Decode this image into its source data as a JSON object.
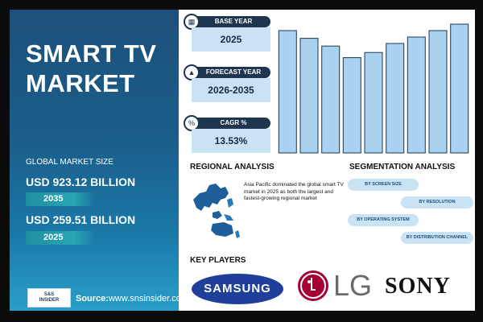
{
  "title": "SMART TV MARKET",
  "market": {
    "label": "GLOBAL MARKET SIZE",
    "value_future": "USD 923.12 BILLION",
    "year_future": "2035",
    "value_current": "USD 259.51 BILLION",
    "year_current": "2025"
  },
  "stats": {
    "base_year_label": "BASE YEAR",
    "base_year": "2025",
    "forecast_label": "FORECAST YEAR",
    "forecast": "2026-2035",
    "cagr_label": "CAGR %",
    "cagr": "13.53%"
  },
  "source": {
    "label": "Source:",
    "url": "www.snsinsider.com"
  },
  "logo_text": "S&S INSIDER Strategy & Stats",
  "regional": {
    "heading": "REGIONAL ANALYSIS",
    "text": "Asia Pacific dominated the global smart TV market in 2025 as both the largest and fastest-growing regional market"
  },
  "segmentation": {
    "heading": "SEGMENTATION ANALYSIS",
    "items": [
      "BY SCREEN SIZE",
      "BY RESOLUTION",
      "BY OPERATING SYSTEM",
      "BY DISTRIBUTION CHANNEL"
    ]
  },
  "players": {
    "heading": "KEY PLAYERS",
    "names": [
      "SAMSUNG",
      "LG",
      "SONY"
    ]
  },
  "colors": {
    "bar": "#a9d2f0",
    "bar_stroke": "#1e3550",
    "panel": "#1d4f7a",
    "accent": "#2aa5b3"
  },
  "chart_data": {
    "type": "bar",
    "values": [
      95,
      89,
      83,
      74,
      78,
      85,
      90,
      95,
      100
    ],
    "ylim": [
      0,
      100
    ]
  }
}
